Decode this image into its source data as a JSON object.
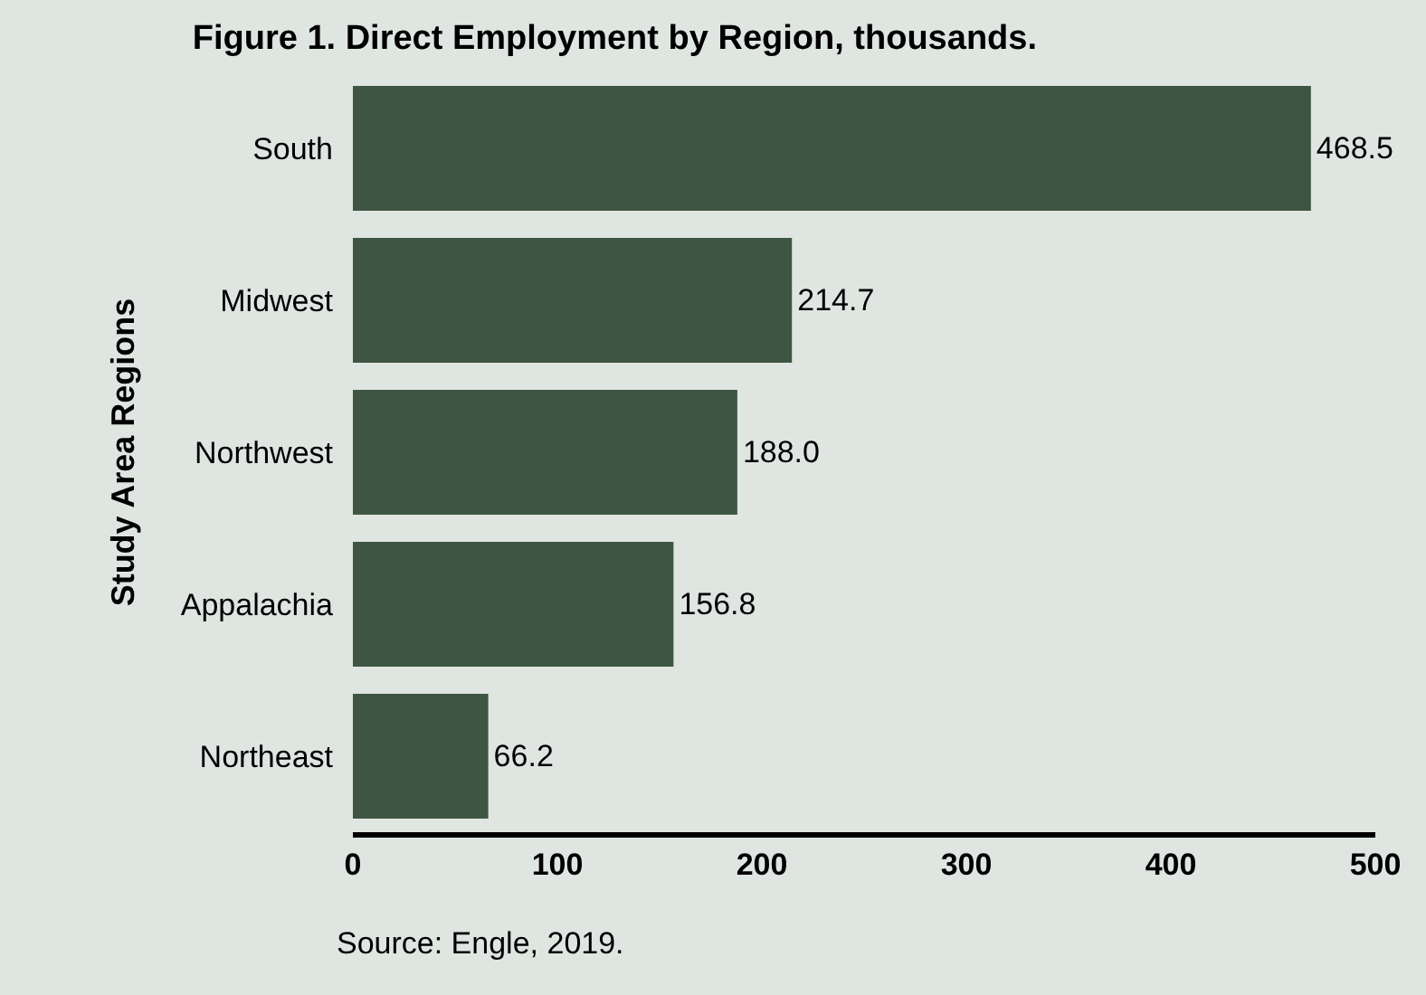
{
  "chart_data": {
    "type": "bar",
    "orientation": "horizontal",
    "title": "Figure 1. Direct Employment by Region, thousands.",
    "ylabel": "Study Area Regions",
    "categories": [
      "South",
      "Midwest",
      "Northwest",
      "Appalachia",
      "Northeast"
    ],
    "values": [
      468.5,
      214.7,
      188.0,
      156.8,
      66.2
    ],
    "value_labels": [
      "468.5",
      "214.7",
      "188.0",
      "156.8",
      "66.2"
    ],
    "color": "#3e5641",
    "xlim": [
      0,
      500
    ],
    "xticks": [
      0,
      100,
      200,
      300,
      400,
      500
    ],
    "grid": false,
    "legend": false,
    "annotations": [
      "Source: Engle, 2019."
    ]
  }
}
